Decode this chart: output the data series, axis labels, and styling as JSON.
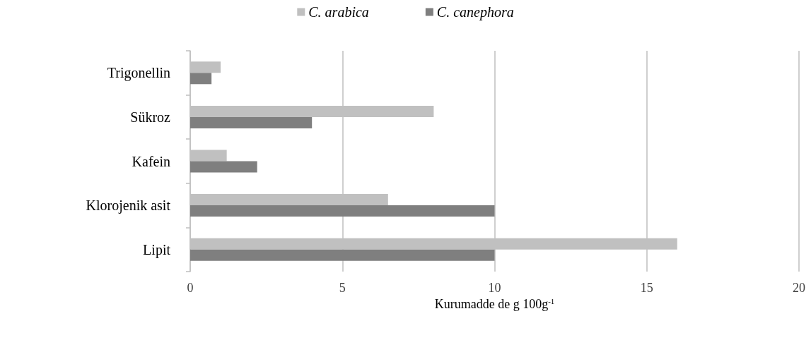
{
  "chart_data": {
    "type": "bar",
    "orientation": "horizontal",
    "categories": [
      "Trigonellin",
      "Sükroz",
      "Kafein",
      "Klorojenik asit",
      "Lipit"
    ],
    "series": [
      {
        "name": "C. arabica",
        "color": "#c0c0c0",
        "values": [
          1.0,
          8.0,
          1.2,
          6.5,
          16.0
        ]
      },
      {
        "name": "C. canephora",
        "color": "#7f7f7f",
        "values": [
          0.7,
          4.0,
          2.2,
          10.0,
          10.0
        ]
      }
    ],
    "xlabel": "Kurumadde de g 100g$^{-1}$",
    "xlim": [
      0,
      20
    ],
    "xticks": [
      0,
      5,
      10,
      15,
      20
    ],
    "grid": "x",
    "legend": "top"
  }
}
